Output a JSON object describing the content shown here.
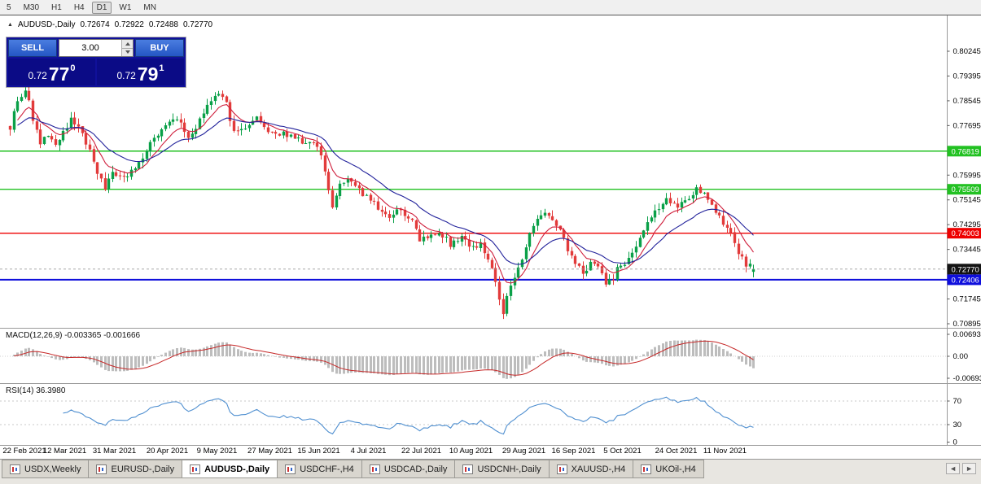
{
  "icons": {
    "collapse": "▲",
    "tab_prev": "◄",
    "tab_next": "►"
  },
  "colors": {
    "up_candle": "#0aa048",
    "down_candle": "#e23b3b",
    "ma_fast": "#cf1f3c",
    "ma_slow": "#22229b",
    "macd_hist": "#bdbdbd",
    "macd_signal": "#c62828",
    "rsi_line": "#4f8fd0",
    "level_green": "#22c122",
    "level_red": "#ee0000",
    "level_blue": "#0e0edc",
    "current_price_badge": "#141414",
    "buy_sell_button": "#2c63d6",
    "trade_panel_bg": "#10109a"
  },
  "toolbar": {
    "timeframes": [
      {
        "label": "5",
        "active": false
      },
      {
        "label": "M30",
        "active": false
      },
      {
        "label": "H1",
        "active": false
      },
      {
        "label": "H4",
        "active": false
      },
      {
        "label": "D1",
        "active": true
      },
      {
        "label": "W1",
        "active": false
      },
      {
        "label": "MN",
        "active": false
      }
    ]
  },
  "chart_header": {
    "symbol": "AUDUSD-,Daily",
    "open": "0.72674",
    "high": "0.72922",
    "low": "0.72488",
    "close": "0.72770"
  },
  "trade_panel": {
    "sell_label": "SELL",
    "buy_label": "BUY",
    "volume": "3.00",
    "bid": {
      "prefix": "0.72",
      "big": "77",
      "sup": "0"
    },
    "ask": {
      "prefix": "0.72",
      "big": "79",
      "sup": "1"
    }
  },
  "price_axis": {
    "labels": [
      "0.80245",
      "0.79395",
      "0.78545",
      "0.77695",
      "0.76845",
      "0.75995",
      "0.75145",
      "0.74295",
      "0.73445",
      "0.72595",
      "0.71745",
      "0.70895"
    ]
  },
  "macd_panel": {
    "label": "MACD(12,26,9) -0.003365 -0.001666",
    "axis_labels": [
      "0.006936",
      "0.00",
      "-0.006936"
    ]
  },
  "rsi_panel": {
    "label": "RSI(14) 36.3980",
    "axis_labels": [
      "70",
      "30",
      "0"
    ]
  },
  "current_price": {
    "price": 0.7277,
    "label": "0.72770",
    "badge_color": "#141414"
  },
  "bottom_tabs": [
    {
      "label": "USDX,Weekly",
      "active": false
    },
    {
      "label": "EURUSD-,Daily",
      "active": false
    },
    {
      "label": "AUDUSD-,Daily",
      "active": true
    },
    {
      "label": "USDCHF-,H4",
      "active": false
    },
    {
      "label": "USDCAD-,Daily",
      "active": false
    },
    {
      "label": "USDCNH-,Daily",
      "active": false
    },
    {
      "label": "XAUUSD-,H4",
      "active": false
    },
    {
      "label": "UKOil-,H4",
      "active": false
    }
  ],
  "chart_data": {
    "type": "candlestick",
    "symbol": "AUDUSD-",
    "timeframe": "Daily",
    "title": "AUDUSD-,Daily",
    "ohlc_current": {
      "open": 0.72674,
      "high": 0.72922,
      "low": 0.72488,
      "close": 0.7277
    },
    "y_axis": {
      "min": 0.70895,
      "max": 0.80245,
      "tick_step": 0.0085
    },
    "x_axis_dates": [
      {
        "label": "22 Feb 2021",
        "index": 0
      },
      {
        "label": "12 Mar 2021",
        "index": 14
      },
      {
        "label": "31 Mar 2021",
        "index": 27
      },
      {
        "label": "20 Apr 2021",
        "index": 41
      },
      {
        "label": "9 May 2021",
        "index": 54
      },
      {
        "label": "27 May 2021",
        "index": 68
      },
      {
        "label": "15 Jun 2021",
        "index": 81
      },
      {
        "label": "4 Jul 2021",
        "index": 94
      },
      {
        "label": "22 Jul 2021",
        "index": 108
      },
      {
        "label": "10 Aug 2021",
        "index": 121
      },
      {
        "label": "29 Aug 2021",
        "index": 135
      },
      {
        "label": "16 Sep 2021",
        "index": 148
      },
      {
        "label": "5 Oct 2021",
        "index": 161
      },
      {
        "label": "24 Oct 2021",
        "index": 175
      },
      {
        "label": "11 Nov 2021",
        "index": 188
      }
    ],
    "horizontal_lines": [
      {
        "price": 0.76819,
        "label": "0.76819",
        "type": "resistance",
        "color": "#22c122",
        "width": 1.4
      },
      {
        "price": 0.75509,
        "label": "0.75509",
        "type": "resistance",
        "color": "#22c122",
        "width": 1.4
      },
      {
        "price": 0.74003,
        "label": "0.74003",
        "type": "level",
        "color": "#ee0000",
        "width": 1.4
      },
      {
        "price": 0.72406,
        "label": "0.72406",
        "type": "support",
        "color": "#0e0edc",
        "width": 2
      }
    ],
    "indicators": [
      {
        "name": "MACD",
        "params": [
          12,
          26,
          9
        ],
        "current_values": [
          -0.003365,
          -0.001666
        ],
        "axis_range": [
          -0.006936,
          0.006936
        ]
      },
      {
        "name": "RSI",
        "params": [
          14
        ],
        "current_value": 36.398,
        "levels": [
          70,
          30
        ]
      }
    ],
    "candle_count": 197,
    "price_path_anchors": [
      [
        0,
        0.7768
      ],
      [
        2,
        0.786
      ],
      [
        4,
        0.7893
      ],
      [
        6,
        0.7795
      ],
      [
        8,
        0.7702
      ],
      [
        10,
        0.7738
      ],
      [
        12,
        0.7692
      ],
      [
        14,
        0.7756
      ],
      [
        16,
        0.7788
      ],
      [
        19,
        0.7742
      ],
      [
        22,
        0.7642
      ],
      [
        25,
        0.7548
      ],
      [
        27,
        0.7602
      ],
      [
        30,
        0.7582
      ],
      [
        33,
        0.7622
      ],
      [
        36,
        0.7692
      ],
      [
        39,
        0.7737
      ],
      [
        41,
        0.7762
      ],
      [
        44,
        0.7792
      ],
      [
        47,
        0.7726
      ],
      [
        50,
        0.7782
      ],
      [
        53,
        0.7852
      ],
      [
        55,
        0.7884
      ],
      [
        57,
        0.784
      ],
      [
        59,
        0.7742
      ],
      [
        62,
        0.7772
      ],
      [
        65,
        0.7802
      ],
      [
        68,
        0.7746
      ],
      [
        71,
        0.7731
      ],
      [
        74,
        0.7747
      ],
      [
        77,
        0.7702
      ],
      [
        80,
        0.7716
      ],
      [
        82,
        0.7662
      ],
      [
        84,
        0.7552
      ],
      [
        85,
        0.7484
      ],
      [
        87,
        0.7562
      ],
      [
        90,
        0.7582
      ],
      [
        92,
        0.7546
      ],
      [
        94,
        0.7526
      ],
      [
        97,
        0.7486
      ],
      [
        100,
        0.7446
      ],
      [
        103,
        0.7486
      ],
      [
        106,
        0.7442
      ],
      [
        108,
        0.7366
      ],
      [
        110,
        0.7386
      ],
      [
        113,
        0.7402
      ],
      [
        116,
        0.7366
      ],
      [
        119,
        0.7396
      ],
      [
        121,
        0.7342
      ],
      [
        124,
        0.7362
      ],
      [
        127,
        0.7292
      ],
      [
        129,
        0.7165
      ],
      [
        130,
        0.7122
      ],
      [
        132,
        0.7226
      ],
      [
        135,
        0.7302
      ],
      [
        138,
        0.7432
      ],
      [
        140,
        0.7472
      ],
      [
        143,
        0.7442
      ],
      [
        146,
        0.7382
      ],
      [
        148,
        0.7312
      ],
      [
        151,
        0.7272
      ],
      [
        154,
        0.7302
      ],
      [
        157,
        0.7232
      ],
      [
        159,
        0.7252
      ],
      [
        161,
        0.7292
      ],
      [
        164,
        0.7322
      ],
      [
        167,
        0.7422
      ],
      [
        170,
        0.7476
      ],
      [
        173,
        0.7532
      ],
      [
        175,
        0.7492
      ],
      [
        178,
        0.7516
      ],
      [
        181,
        0.7548
      ],
      [
        184,
        0.7522
      ],
      [
        186,
        0.7482
      ],
      [
        188,
        0.7432
      ],
      [
        190,
        0.7392
      ],
      [
        192,
        0.7332
      ],
      [
        194,
        0.7292
      ],
      [
        196,
        0.7277
      ]
    ],
    "notable_points": [
      {
        "index": 130,
        "low": 0.7106
      },
      {
        "index": 182,
        "high": 0.7555
      }
    ]
  }
}
